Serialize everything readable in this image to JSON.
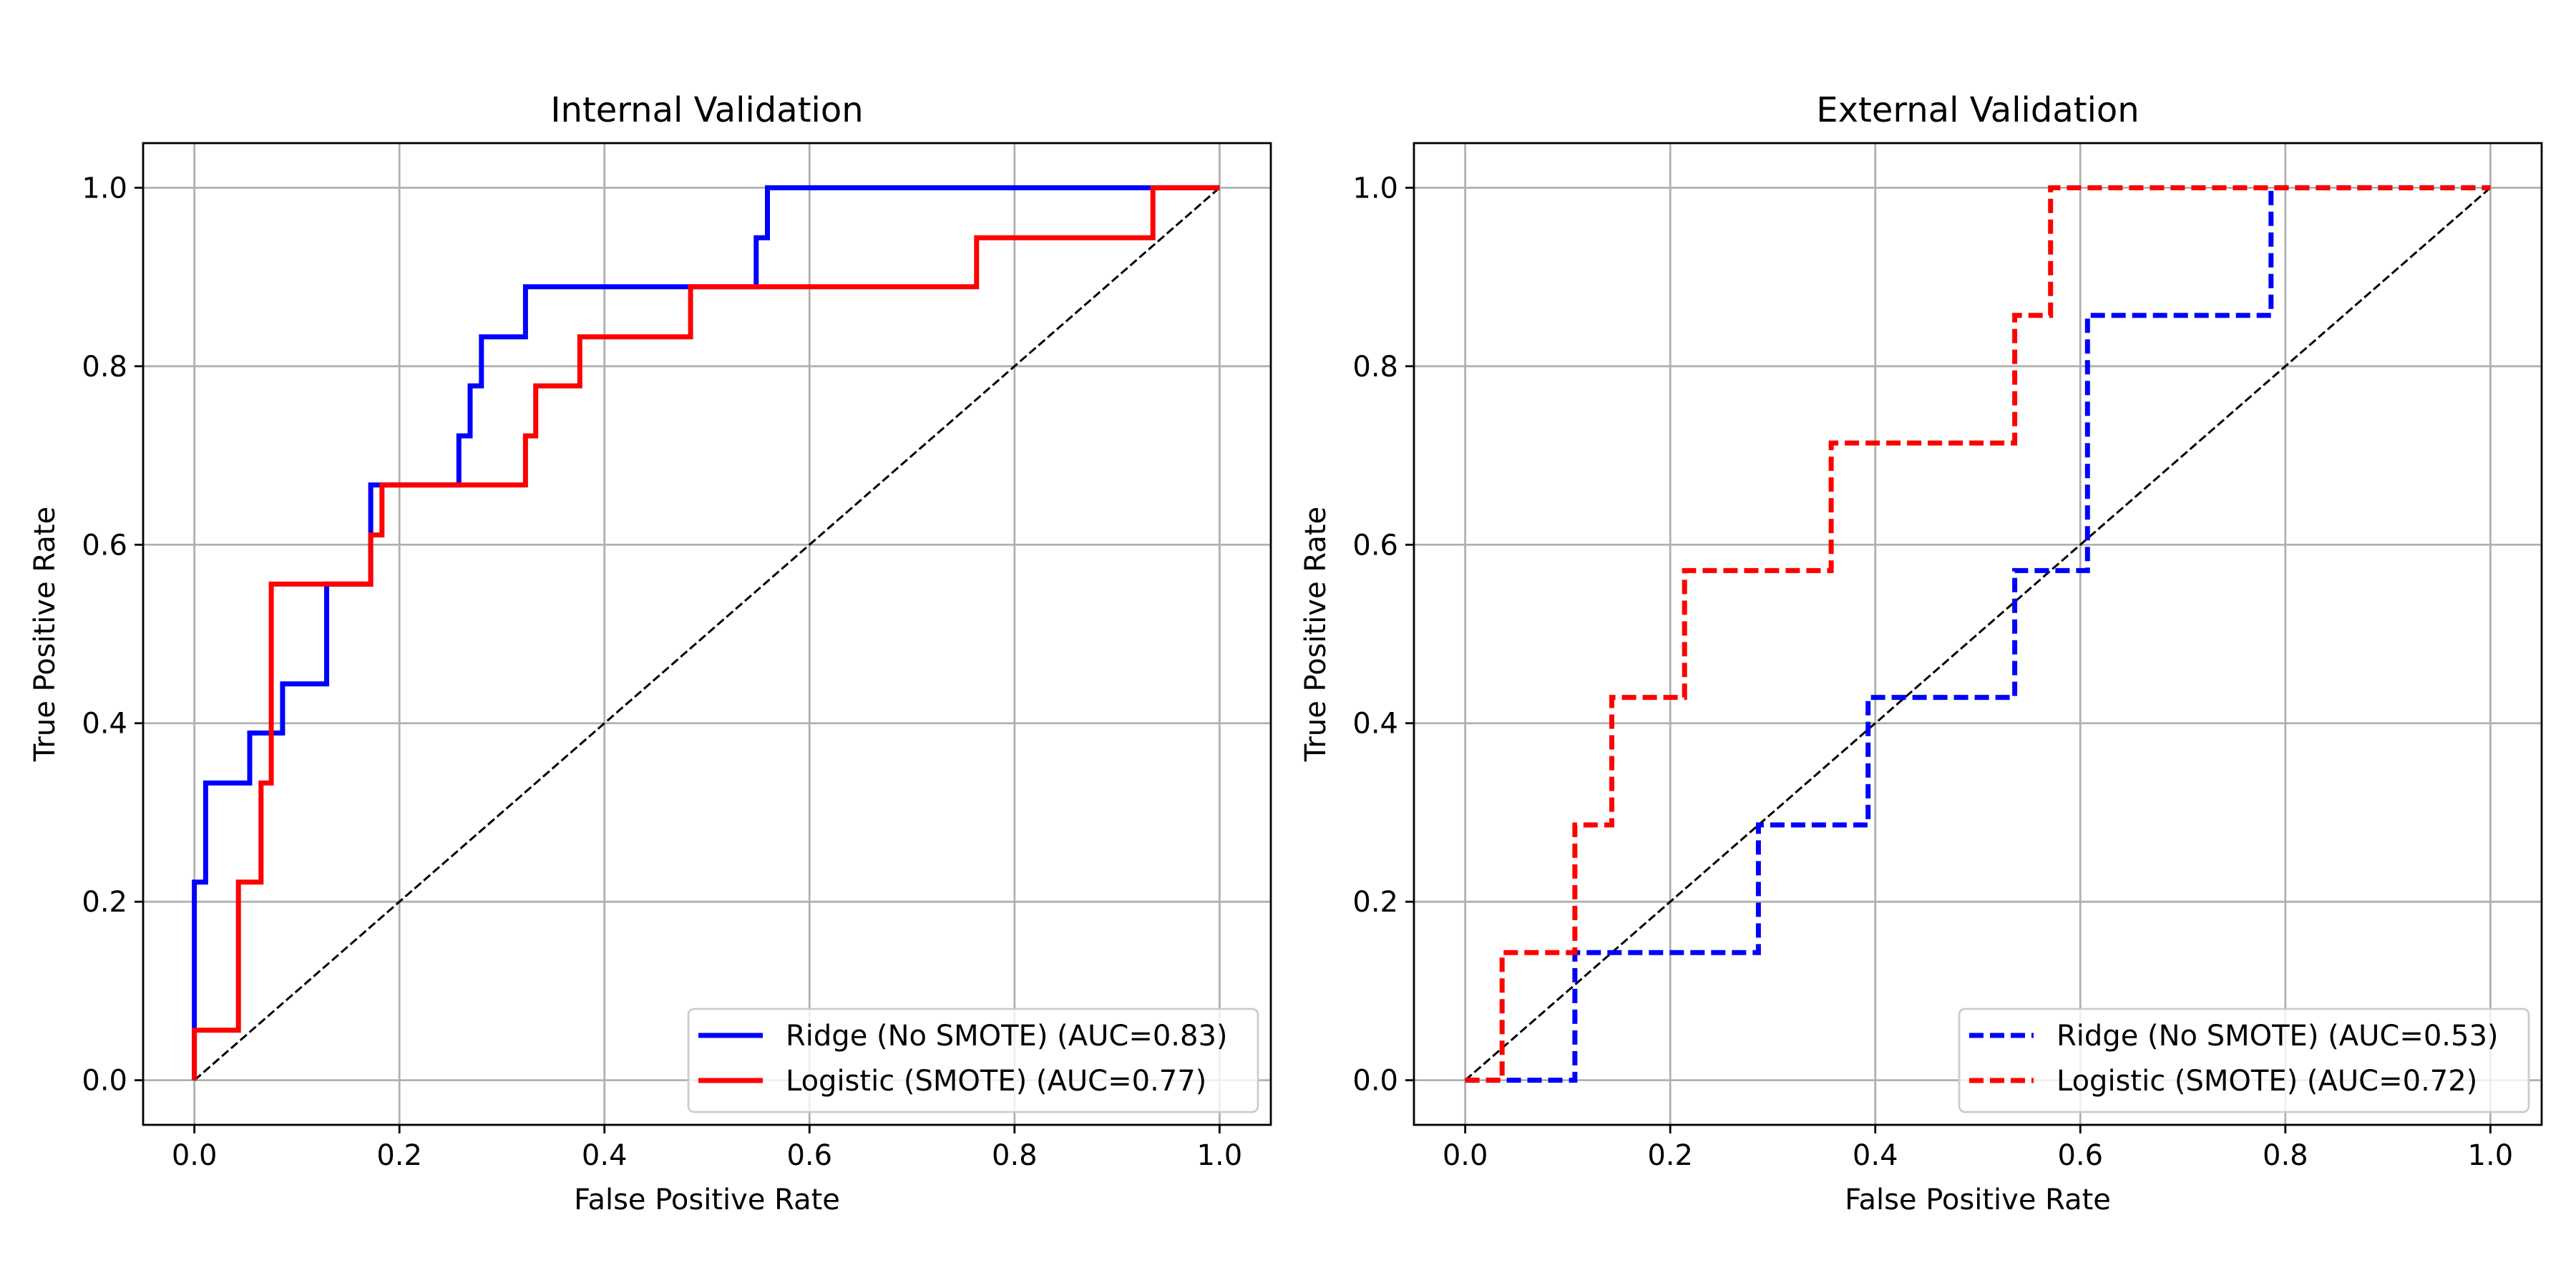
{
  "chart_data": [
    {
      "type": "line",
      "title": "Internal Validation",
      "xlabel": "False Positive Rate",
      "ylabel": "True Positive Rate",
      "xlim": [
        -0.05,
        1.05
      ],
      "ylim": [
        -0.05,
        1.05
      ],
      "xticks": [
        "0.0",
        "0.2",
        "0.4",
        "0.6",
        "0.8",
        "1.0"
      ],
      "yticks": [
        "0.0",
        "0.2",
        "0.4",
        "0.6",
        "0.8",
        "1.0"
      ],
      "grid": true,
      "legend_position": "lower-right",
      "reference_line": {
        "x": [
          0,
          1
        ],
        "y": [
          0,
          1
        ],
        "color": "#000000",
        "style": "dashed"
      },
      "series": [
        {
          "name": "Ridge (No SMOTE) (AUC=0.83)",
          "color": "#0000ff",
          "style": "solid",
          "x": [
            0,
            0,
            0.011,
            0.011,
            0.054,
            0.054,
            0.086,
            0.086,
            0.129,
            0.129,
            0.172,
            0.172,
            0.258,
            0.258,
            0.269,
            0.269,
            0.28,
            0.28,
            0.323,
            0.323,
            0.548,
            0.548,
            0.559,
            0.559,
            1.0
          ],
          "y": [
            0,
            0.222,
            0.222,
            0.333,
            0.333,
            0.389,
            0.389,
            0.444,
            0.444,
            0.556,
            0.556,
            0.667,
            0.667,
            0.722,
            0.722,
            0.778,
            0.778,
            0.833,
            0.833,
            0.889,
            0.889,
            0.944,
            0.944,
            1.0,
            1.0
          ]
        },
        {
          "name": "Logistic (SMOTE) (AUC=0.77)",
          "color": "#ff0000",
          "style": "solid",
          "x": [
            0,
            0,
            0.043,
            0.043,
            0.065,
            0.065,
            0.075,
            0.075,
            0.172,
            0.172,
            0.183,
            0.183,
            0.323,
            0.323,
            0.333,
            0.333,
            0.376,
            0.376,
            0.484,
            0.484,
            0.763,
            0.763,
            0.935,
            0.935,
            1.0
          ],
          "y": [
            0,
            0.056,
            0.056,
            0.222,
            0.222,
            0.333,
            0.333,
            0.556,
            0.556,
            0.611,
            0.611,
            0.667,
            0.667,
            0.722,
            0.722,
            0.778,
            0.778,
            0.833,
            0.833,
            0.889,
            0.889,
            0.944,
            0.944,
            1.0,
            1.0
          ]
        }
      ]
    },
    {
      "type": "line",
      "title": "External Validation",
      "xlabel": "False Positive Rate",
      "ylabel": "True Positive Rate",
      "xlim": [
        -0.05,
        1.05
      ],
      "ylim": [
        -0.05,
        1.05
      ],
      "xticks": [
        "0.0",
        "0.2",
        "0.4",
        "0.6",
        "0.8",
        "1.0"
      ],
      "yticks": [
        "0.0",
        "0.2",
        "0.4",
        "0.6",
        "0.8",
        "1.0"
      ],
      "grid": true,
      "legend_position": "lower-right",
      "reference_line": {
        "x": [
          0,
          1
        ],
        "y": [
          0,
          1
        ],
        "color": "#000000",
        "style": "dashed"
      },
      "series": [
        {
          "name": "Ridge (No SMOTE) (AUC=0.53)",
          "color": "#0000ff",
          "style": "dashed",
          "x": [
            0,
            0.107,
            0.107,
            0.286,
            0.286,
            0.393,
            0.393,
            0.536,
            0.536,
            0.607,
            0.607,
            0.786,
            0.786,
            1.0
          ],
          "y": [
            0,
            0,
            0.143,
            0.143,
            0.286,
            0.286,
            0.429,
            0.429,
            0.571,
            0.571,
            0.857,
            0.857,
            1.0,
            1.0
          ]
        },
        {
          "name": "Logistic (SMOTE) (AUC=0.72)",
          "color": "#ff0000",
          "style": "dashed",
          "x": [
            0,
            0.036,
            0.036,
            0.107,
            0.107,
            0.143,
            0.143,
            0.214,
            0.214,
            0.357,
            0.357,
            0.536,
            0.536,
            0.571,
            0.571,
            1.0
          ],
          "y": [
            0,
            0,
            0.143,
            0.143,
            0.286,
            0.286,
            0.429,
            0.429,
            0.571,
            0.571,
            0.714,
            0.714,
            0.857,
            0.857,
            1.0,
            1.0
          ]
        }
      ]
    }
  ]
}
